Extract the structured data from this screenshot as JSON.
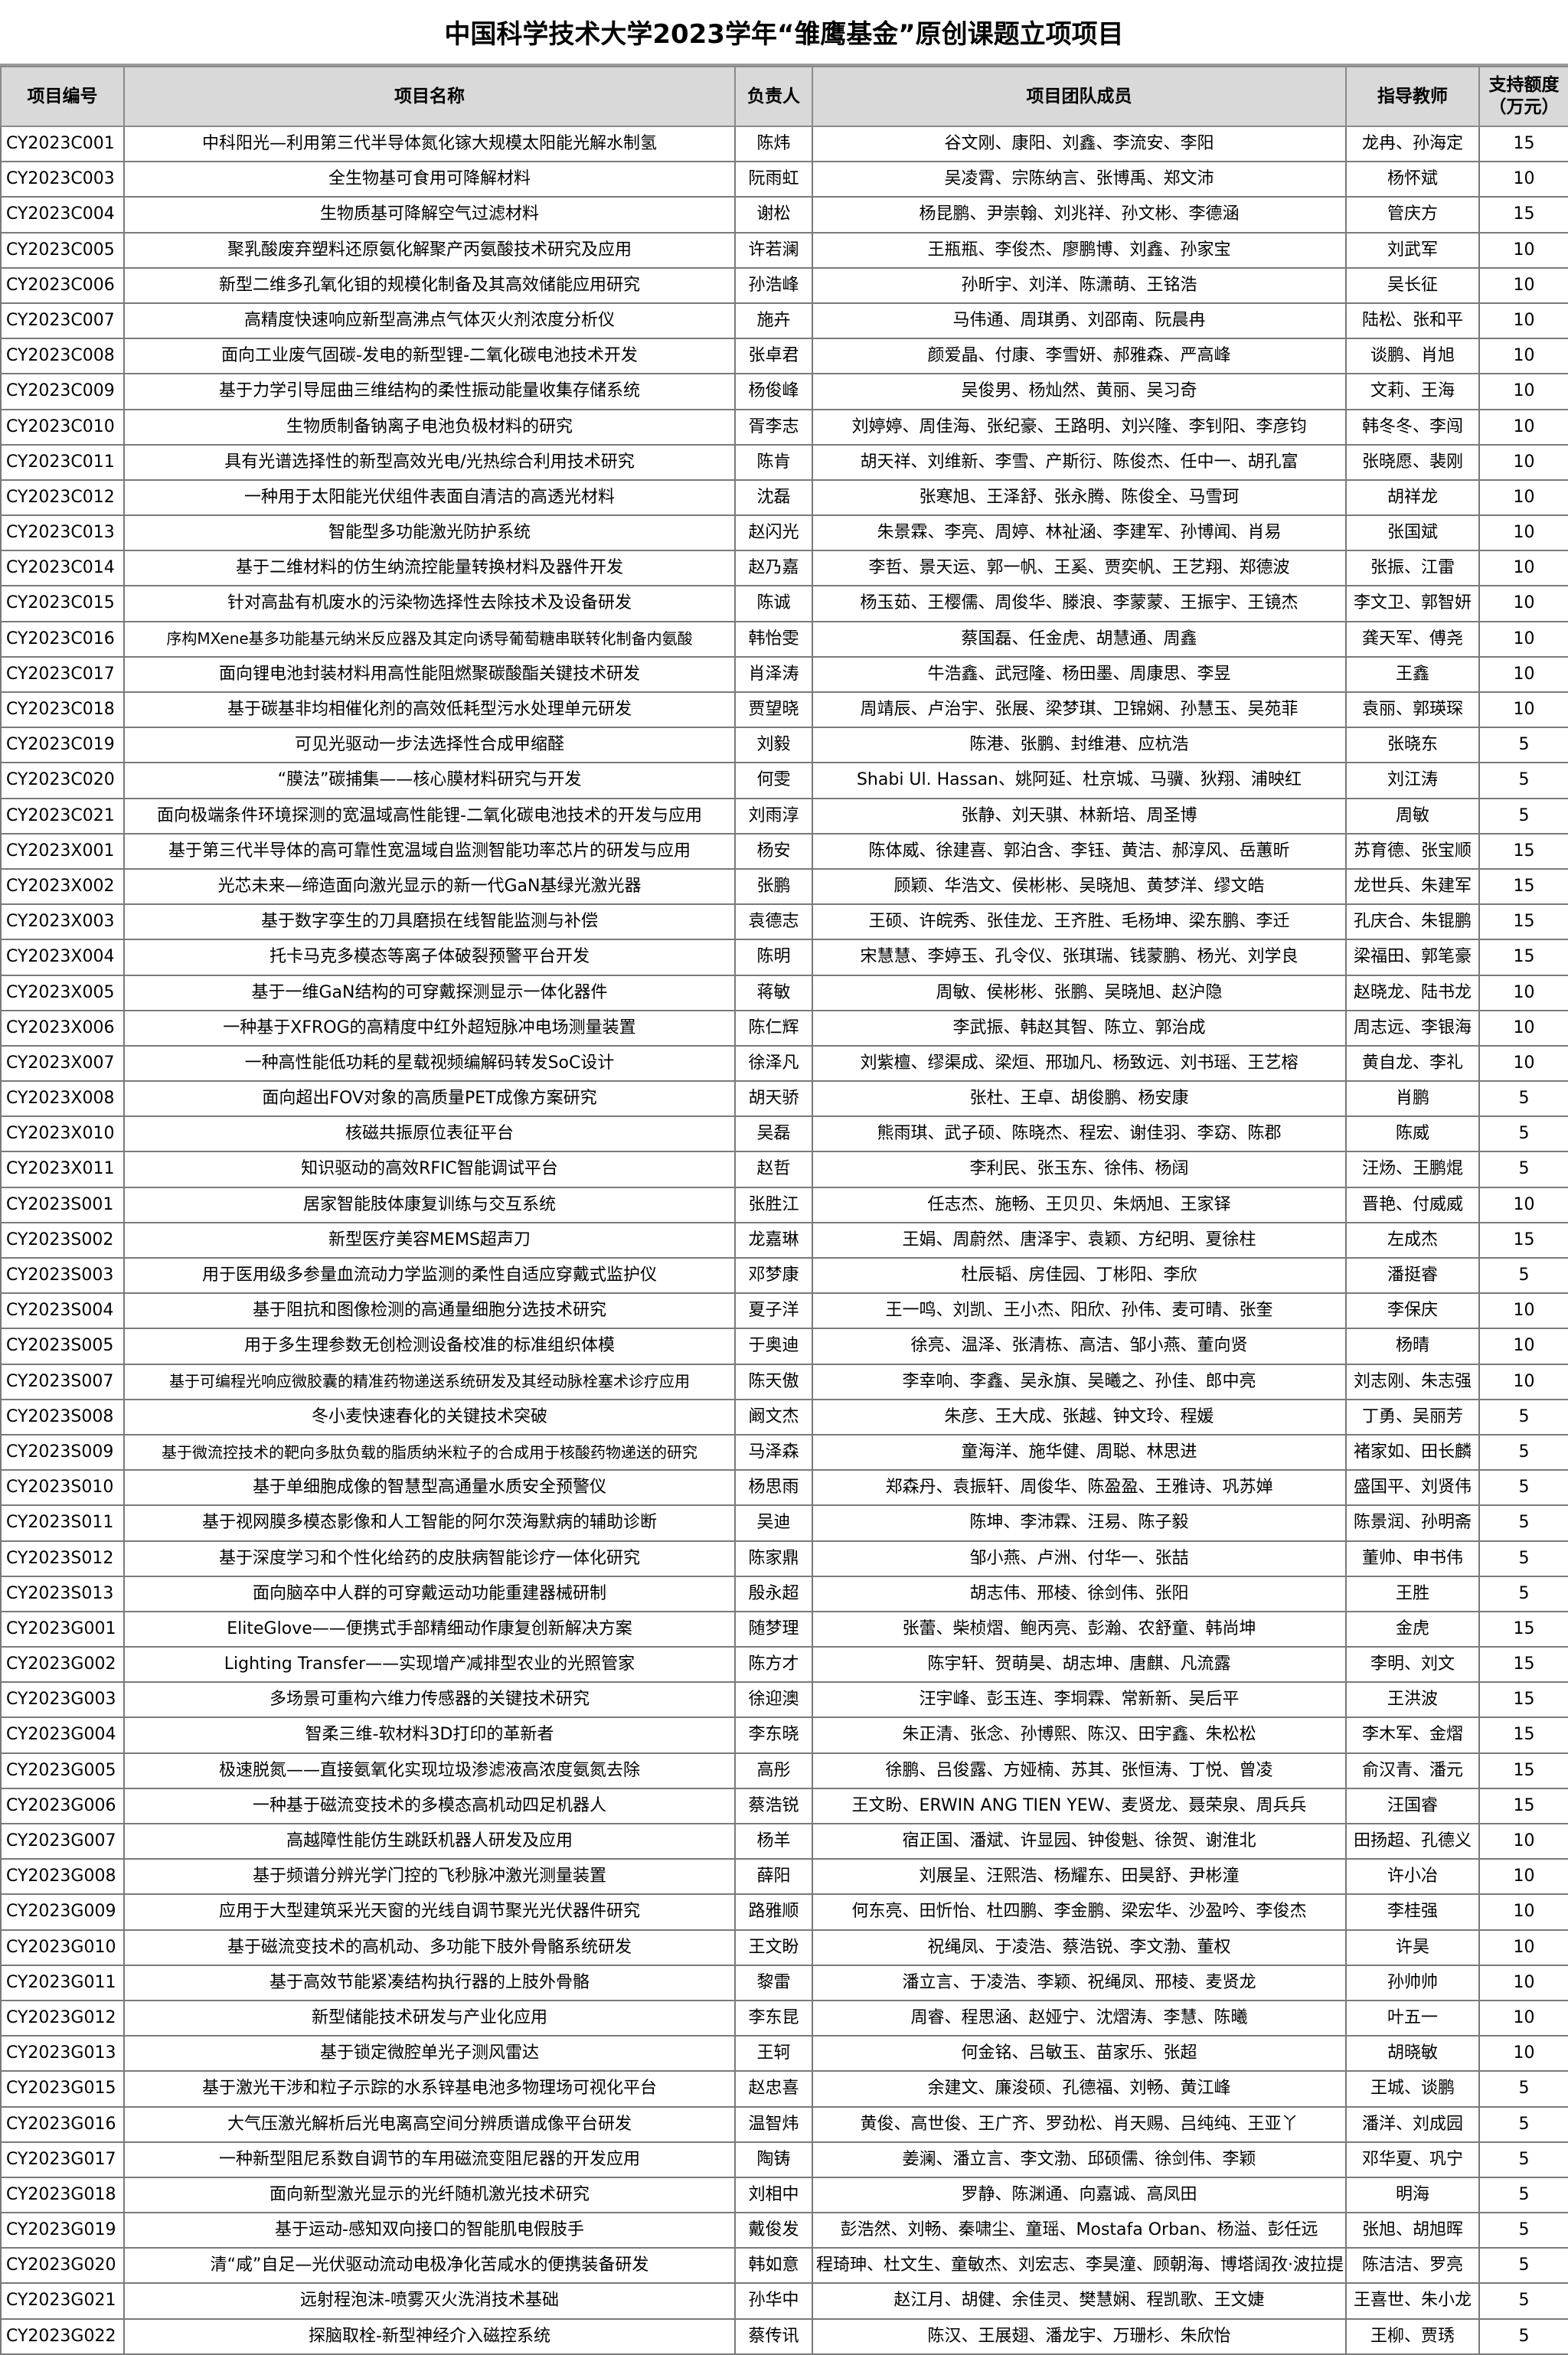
{
  "title": "中国科学技术大学2023学年“雏鹰基金”原创课题立项项目",
  "headers": [
    "项目编号",
    "项目名称",
    "负责人",
    "项目团队成员",
    "指导教师",
    "支持额度（万元）"
  ],
  "rows": [
    [
      "CY2023C001",
      "中科阳光—利用第三代半导体氮化镓大规模太阳能光解水制氢",
      "陈炜",
      "谷文刚、康阳、刘鑫、李流安、李阳",
      "龙冉、孙海定",
      "15"
    ],
    [
      "CY2023C003",
      "全生物基可食用可降解材料",
      "阮雨虹",
      "吴凌霄、宗陈纳言、张博禹、郑文沛",
      "杨怀斌",
      "10"
    ],
    [
      "CY2023C004",
      "生物质基可降解空气过滤材料",
      "谢松",
      "杨昆鹏、尹崇翰、刘兆祥、孙文彬、李德涵",
      "管庆方",
      "15"
    ],
    [
      "CY2023C005",
      "聚乳酸废弃塑料还原氨化解聚产丙氨酸技术研究及应用",
      "许若澜",
      "王瓶瓶、李俊杰、廖鹏博、刘鑫、孙家宝",
      "刘武军",
      "10"
    ],
    [
      "CY2023C006",
      "新型二维多孔氧化钼的规模化制备及其高效储能应用研究",
      "孙浩峰",
      "孙昕宇、刘洋、陈潇萌、王铭浩",
      "吴长征",
      "10"
    ],
    [
      "CY2023C007",
      "高精度快速响应新型高沸点气体灭火剂浓度分析仪",
      "施卉",
      "马伟通、周琪勇、刘邵南、阮晨冉",
      "陆松、张和平",
      "10"
    ],
    [
      "CY2023C008",
      "面向工业废气固碳-发电的新型锂-二氧化碳电池技术开发",
      "张卓君",
      "颜爱晶、付康、李雪妍、郝雅森、严高峰",
      "谈鹏、肖旭",
      "10"
    ],
    [
      "CY2023C009",
      "基于力学引导屈曲三维结构的柔性振动能量收集存储系统",
      "杨俊峰",
      "吴俊男、杨灿然、黄丽、吴习奇",
      "文莉、王海",
      "10"
    ],
    [
      "CY2023C010",
      "生物质制备钠离子电池负极材料的研究",
      "胥李志",
      "刘婷婷、周佳海、张纪豪、王路明、刘兴隆、李钊阳、李彦钧",
      "韩冬冬、李闯",
      "10"
    ],
    [
      "CY2023C011",
      "具有光谱选择性的新型高效光电/光热综合利用技术研究",
      "陈肯",
      "胡天祥、刘维新、李雪、产斯衍、陈俊杰、任中一、胡孔富",
      "张晓愿、裴刚",
      "10"
    ],
    [
      "CY2023C012",
      "一种用于太阳能光伏组件表面自清洁的高透光材料",
      "沈磊",
      "张寒旭、王泽舒、张永腾、陈俊全、马雪珂",
      "胡祥龙",
      "10"
    ],
    [
      "CY2023C013",
      "智能型多功能激光防护系统",
      "赵闪光",
      "朱景霖、李亮、周婷、林祉涵、李建军、孙博闻、肖易",
      "张国斌",
      "10"
    ],
    [
      "CY2023C014",
      "基于二维材料的仿生纳流控能量转换材料及器件开发",
      "赵乃嘉",
      "李哲、景天运、郭一帆、王奚、贾奕帆、王艺翔、郑德波",
      "张振、江雷",
      "10"
    ],
    [
      "CY2023C015",
      "针对高盐有机废水的污染物选择性去除技术及设备研发",
      "陈诚",
      "杨玉茹、王樱儒、周俊华、滕浪、李蒙蒙、王振宇、王镜杰",
      "李文卫、郭智妍",
      "10"
    ],
    [
      "CY2023C016",
      "序构MXene基多功能基元纳米反应器及其定向诱导葡萄糖串联转化制备内氨酸",
      "韩怡雯",
      "蔡国磊、任金虎、胡慧通、周鑫",
      "龚天军、傅尧",
      "10"
    ],
    [
      "CY2023C017",
      "面向锂电池封装材料用高性能阻燃聚碳酸酯关键技术研发",
      "肖泽涛",
      "牛浩鑫、武冠隆、杨田墨、周康思、李昱",
      "王鑫",
      "10"
    ],
    [
      "CY2023C018",
      "基于碳基非均相催化剂的高效低耗型污水处理单元研发",
      "贾望晓",
      "周靖辰、卢治宇、张展、梁梦琪、卫锦娴、孙慧玉、吴苑菲",
      "袁丽、郭瑛琛",
      "10"
    ],
    [
      "CY2023C019",
      "可见光驱动一步法选择性合成甲缩醛",
      "刘毅",
      "陈港、张鹏、封维港、应杭浩",
      "张晓东",
      "5"
    ],
    [
      "CY2023C020",
      "“膜法”碳捕集——核心膜材料研究与开发",
      "何雯",
      "Shabi Ul. Hassan、姚阿延、杜京城、马骥、狄翔、浦映红",
      "刘江涛",
      "5"
    ],
    [
      "CY2023C021",
      "面向极端条件环境探测的宽温域高性能锂-二氧化碳电池技术的开发与应用",
      "刘雨淳",
      "张静、刘天骐、林新培、周圣博",
      "周敏",
      "5"
    ],
    [
      "CY2023X001",
      "基于第三代半导体的高可靠性宽温域自监测智能功率芯片的研发与应用",
      "杨安",
      "陈体威、徐建喜、郭泊含、李钰、黄洁、郝淳风、岳蕙昕",
      "苏育德、张宝顺",
      "15"
    ],
    [
      "CY2023X002",
      "光芯未来—缔造面向激光显示的新一代GaN基绿光激光器",
      "张鹏",
      "顾颖、华浩文、侯彬彬、吴晓旭、黄梦洋、缪文皓",
      "龙世兵、朱建军",
      "15"
    ],
    [
      "CY2023X003",
      "基于数字孪生的刀具磨损在线智能监测与补偿",
      "袁德志",
      "王硕、许皖秀、张佳龙、王齐胜、毛杨坤、梁东鹏、李迁",
      "孔庆合、朱锟鹏",
      "15"
    ],
    [
      "CY2023X004",
      "托卡马克多模态等离子体破裂预警平台开发",
      "陈明",
      "宋慧慧、李婷玉、孔令仪、张琪瑞、钱蒙鹏、杨光、刘学良",
      "梁福田、郭笔豪",
      "15"
    ],
    [
      "CY2023X005",
      "基于一维GaN结构的可穿戴探测显示一体化器件",
      "蒋敏",
      "周敏、侯彬彬、张鹏、吴晓旭、赵沪隐",
      "赵晓龙、陆书龙",
      "10"
    ],
    [
      "CY2023X006",
      "一种基于XFROG的高精度中红外超短脉冲电场测量装置",
      "陈仁辉",
      "李武振、韩赵其智、陈立、郭治成",
      "周志远、李银海",
      "10"
    ],
    [
      "CY2023X007",
      "一种高性能低功耗的星载视频编解码转发SoC设计",
      "徐泽凡",
      "刘紫檀、缪渠成、梁烜、邢珈凡、杨致远、刘书瑶、王艺榕",
      "黄自龙、李礼",
      "10"
    ],
    [
      "CY2023X008",
      "面向超出FOV对象的高质量PET成像方案研究",
      "胡天骄",
      "张杜、王卓、胡俊鹏、杨安康",
      "肖鹏",
      "5"
    ],
    [
      "CY2023X010",
      "核磁共振原位表征平台",
      "吴磊",
      "熊雨琪、武子硕、陈晓杰、程宏、谢佳羽、李窈、陈郡",
      "陈威",
      "5"
    ],
    [
      "CY2023X011",
      "知识驱动的高效RFIC智能调试平台",
      "赵哲",
      "李利民、张玉东、徐伟、杨阔",
      "汪炀、王鹏焜",
      "5"
    ],
    [
      "CY2023S001",
      "居家智能肢体康复训练与交互系统",
      "张胜江",
      "任志杰、施畅、王贝贝、朱炳旭、王家铎",
      "晋艳、付威威",
      "10"
    ],
    [
      "CY2023S002",
      "新型医疗美容MEMS超声刀",
      "龙嘉琳",
      "王娟、周蔚然、唐泽宇、袁颖、方纪明、夏徐柱",
      "左成杰",
      "15"
    ],
    [
      "CY2023S003",
      "用于医用级多参量血流动力学监测的柔性自适应穿戴式监护仪",
      "邓梦康",
      "杜辰韬、房佳园、丁彬阳、李欣",
      "潘挺睿",
      "5"
    ],
    [
      "CY2023S004",
      "基于阻抗和图像检测的高通量细胞分选技术研究",
      "夏子洋",
      "王一鸣、刘凯、王小杰、阳欣、孙伟、麦可晴、张奎",
      "李保庆",
      "10"
    ],
    [
      "CY2023S005",
      "用于多生理参数无创检测设备校准的标准组织体模",
      "于奥迪",
      "徐亮、温泽、张清栋、高洁、邹小燕、董向贤",
      "杨晴",
      "10"
    ],
    [
      "CY2023S007",
      "基于可编程光响应微胶囊的精准药物递送系统研发及其经动脉栓塞术诊疗应用",
      "陈天傲",
      "李幸响、李鑫、吴永旗、吴曦之、孙佳、郎中亮",
      "刘志刚、朱志强",
      "10"
    ],
    [
      "CY2023S008",
      "冬小麦快速春化的关键技术突破",
      "阚文杰",
      "朱彦、王大成、张越、钟文玲、程媛",
      "丁勇、吴丽芳",
      "5"
    ],
    [
      "CY2023S009",
      "基于微流控技术的靶向多肽负载的脂质纳米粒子的合成用于核酸药物递送的研究",
      "马泽森",
      "童海洋、施华健、周聪、林思进",
      "褚家如、田长麟",
      "5"
    ],
    [
      "CY2023S010",
      "基于单细胞成像的智慧型高通量水质安全预警仪",
      "杨思雨",
      "郑森丹、袁振轩、周俊华、陈盈盈、王雅诗、巩苏婵",
      "盛国平、刘贤伟",
      "5"
    ],
    [
      "CY2023S011",
      "基于视网膜多模态影像和人工智能的阿尔茨海默病的辅助诊断",
      "吴迪",
      "陈坤、李沛霖、汪易、陈子毅",
      "陈景润、孙明斋",
      "5"
    ],
    [
      "CY2023S012",
      "基于深度学习和个性化给药的皮肤病智能诊疗一体化研究",
      "陈家鼎",
      "邹小燕、卢洲、付华一、张喆",
      "董帅、申书伟",
      "5"
    ],
    [
      "CY2023S013",
      "面向脑卒中人群的可穿戴运动功能重建器械研制",
      "殷永超",
      "胡志伟、邢棱、徐剑伟、张阳",
      "王胜",
      "5"
    ],
    [
      "CY2023G001",
      "EliteGlove——便携式手部精细动作康复创新解决方案",
      "随梦理",
      "张蕾、柴桢熠、鲍丙亮、彭瀚、农舒童、韩尚坤",
      "金虎",
      "15"
    ],
    [
      "CY2023G002",
      "Lighting Transfer——实现增产减排型农业的光照管家",
      "陈方才",
      "陈宇轩、贺萌昊、胡志坤、唐麒、凡流露",
      "李明、刘文",
      "15"
    ],
    [
      "CY2023G003",
      "多场景可重构六维力传感器的关键技术研究",
      "徐迎澳",
      "汪宇峰、彭玉连、李垌霖、常新新、吴后平",
      "王洪波",
      "15"
    ],
    [
      "CY2023G004",
      "智柔三维-软材料3D打印的革新者",
      "李东晓",
      "朱正清、张念、孙博熙、陈汉、田宇鑫、朱松松",
      "李木军、金熠",
      "15"
    ],
    [
      "CY2023G005",
      "极速脱氮——直接氨氧化实现垃圾渗滤液高浓度氨氮去除",
      "高彤",
      "徐鹏、吕俊露、方娅楠、苏其、张恒涛、丁悦、曾凌",
      "俞汉青、潘元",
      "15"
    ],
    [
      "CY2023G006",
      "一种基于磁流变技术的多模态高机动四足机器人",
      "蔡浩锐",
      "王文盼、ERWIN ANG TIEN YEW、麦贤龙、聂荣泉、周兵兵",
      "汪国睿",
      "15"
    ],
    [
      "CY2023G007",
      "高越障性能仿生跳跃机器人研发及应用",
      "杨羊",
      "宿正国、潘斌、许显园、钟俊魁、徐贺、谢淮北",
      "田扬超、孔德义",
      "10"
    ],
    [
      "CY2023G008",
      "基于频谱分辨光学门控的飞秒脉冲激光测量装置",
      "薛阳",
      "刘展呈、汪熙浩、杨耀东、田昊舒、尹彬潼",
      "许小冶",
      "10"
    ],
    [
      "CY2023G009",
      "应用于大型建筑采光天窗的光线自调节聚光光伏器件研究",
      "路雅顺",
      "何东亮、田忻怡、杜四鹏、李金鹏、梁宏华、沙盈吟、李俊杰",
      "李桂强",
      "10"
    ],
    [
      "CY2023G010",
      "基于磁流变技术的高机动、多功能下肢外骨骼系统研发",
      "王文盼",
      "祝绳凤、于凌浩、蔡浩锐、李文渤、董权",
      "许昊",
      "10"
    ],
    [
      "CY2023G011",
      "基于高效节能紧凑结构执行器的上肢外骨骼",
      "黎雷",
      "潘立言、于凌浩、李颖、祝绳凤、邢棱、麦贤龙",
      "孙帅帅",
      "10"
    ],
    [
      "CY2023G012",
      "新型储能技术研发与产业化应用",
      "李东昆",
      "周睿、程思涵、赵娅宁、沈熠涛、李慧、陈曦",
      "叶五一",
      "10"
    ],
    [
      "CY2023G013",
      "基于锁定微腔单光子测风雷达",
      "王轲",
      "何金铭、吕敏玉、苗家乐、张超",
      "胡晓敏",
      "10"
    ],
    [
      "CY2023G015",
      "基于激光干涉和粒子示踪的水系锌基电池多物理场可视化平台",
      "赵忠喜",
      "余建文、廉浚硕、孔德福、刘畅、黄江峰",
      "王城、谈鹏",
      "5"
    ],
    [
      "CY2023G016",
      "大气压激光解析后光电离高空间分辨质谱成像平台研发",
      "温智炜",
      "黄俊、高世俊、王广齐、罗劲松、肖天赐、吕纯纯、王亚丫",
      "潘洋、刘成园",
      "5"
    ],
    [
      "CY2023G017",
      "一种新型阻尼系数自调节的车用磁流变阻尼器的开发应用",
      "陶铸",
      "姜澜、潘立言、李文渤、邱硕儒、徐剑伟、李颖",
      "邓华夏、巩宁",
      "5"
    ],
    [
      "CY2023G018",
      "面向新型激光显示的光纤随机激光技术研究",
      "刘相中",
      "罗静、陈渊通、向嘉诚、高凤田",
      "明海",
      "5"
    ],
    [
      "CY2023G019",
      "基于运动-感知双向接口的智能肌电假肢手",
      "戴俊发",
      "彭浩然、刘畅、秦啸尘、童瑶、Mostafa Orban、杨溢、彭任远",
      "张旭、胡旭晖",
      "5"
    ],
    [
      "CY2023G020",
      "清“咸”自足—光伏驱动流动电极净化苦咸水的便携装备研发",
      "韩如意",
      "程琦珅、杜文生、童敏杰、刘宏志、李昊潼、顾朝海、博塔阔孜·波拉提",
      "陈洁洁、罗亮",
      "5"
    ],
    [
      "CY2023G021",
      "远射程泡沫-喷雾灭火洗消技术基础",
      "孙华中",
      "赵江月、胡健、余佳灵、樊慧娴、程凯歌、王文婕",
      "王喜世、朱小龙",
      "5"
    ],
    [
      "CY2023G022",
      "探脑取栓-新型神经介入磁控系统",
      "蔡传讯",
      "陈汉、王展翅、潘龙宇、万珊杉、朱欣怡",
      "王柳、贾琇",
      "5"
    ]
  ]
}
